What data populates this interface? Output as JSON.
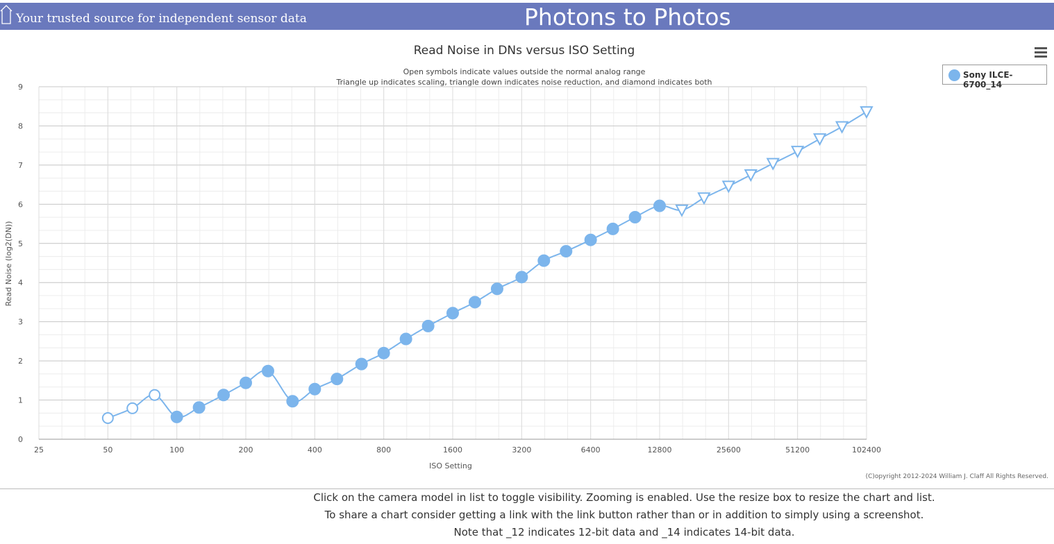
{
  "header": {
    "tagline": "Your trusted source for independent sensor data",
    "site_title": "Photons to Photos",
    "background": "#6a79bd"
  },
  "legend": {
    "label": "Sony ILCE-6700_14",
    "color": "#7cb5ec"
  },
  "copyright": "(C)opyright 2012-2024 William J. Claff All Rights Reserved.",
  "notes": [
    "Click on the camera model in list to toggle visibility. Zooming is enabled. Use the resize box to resize the chart and list.",
    "To share a chart consider getting a link with the link button rather than or in addition to simply using a screenshot.",
    "Note that _12 indicates 12-bit data and _14 indicates 14-bit data."
  ],
  "chart_data": {
    "type": "line",
    "title": "Read Noise in DNs versus ISO Setting",
    "subtitle": [
      "Open symbols indicate values outside the normal analog range",
      "Triangle up indicates scaling, triangle down indicates noise reduction, and diamond indicates both"
    ],
    "xlabel": "ISO Setting",
    "ylabel": "Read Noise (log2(DN))",
    "x_scale": "log2",
    "xlim": [
      25,
      102400
    ],
    "ylim": [
      0,
      9
    ],
    "x_ticks": [
      25,
      50,
      100,
      200,
      400,
      800,
      1600,
      3200,
      6400,
      12800,
      25600,
      51200,
      102400
    ],
    "y_ticks": [
      0,
      1,
      2,
      3,
      4,
      5,
      6,
      7,
      8,
      9
    ],
    "grid": true,
    "legend_position": "top-right",
    "series": [
      {
        "name": "Sony ILCE-6700_14",
        "color": "#7cb5ec",
        "points": [
          {
            "x": 50,
            "y": 0.54,
            "marker": "open-circle"
          },
          {
            "x": 64,
            "y": 0.79,
            "marker": "open-circle"
          },
          {
            "x": 80,
            "y": 1.13,
            "marker": "open-circle"
          },
          {
            "x": 100,
            "y": 0.57,
            "marker": "circle"
          },
          {
            "x": 125,
            "y": 0.81,
            "marker": "circle"
          },
          {
            "x": 160,
            "y": 1.13,
            "marker": "circle"
          },
          {
            "x": 200,
            "y": 1.44,
            "marker": "circle"
          },
          {
            "x": 250,
            "y": 1.74,
            "marker": "circle"
          },
          {
            "x": 320,
            "y": 0.97,
            "marker": "circle"
          },
          {
            "x": 400,
            "y": 1.28,
            "marker": "circle"
          },
          {
            "x": 500,
            "y": 1.54,
            "marker": "circle"
          },
          {
            "x": 640,
            "y": 1.92,
            "marker": "circle"
          },
          {
            "x": 800,
            "y": 2.2,
            "marker": "circle"
          },
          {
            "x": 1000,
            "y": 2.56,
            "marker": "circle"
          },
          {
            "x": 1250,
            "y": 2.89,
            "marker": "circle"
          },
          {
            "x": 1600,
            "y": 3.22,
            "marker": "circle"
          },
          {
            "x": 2000,
            "y": 3.5,
            "marker": "circle"
          },
          {
            "x": 2500,
            "y": 3.84,
            "marker": "circle"
          },
          {
            "x": 3200,
            "y": 4.14,
            "marker": "circle"
          },
          {
            "x": 4000,
            "y": 4.56,
            "marker": "circle"
          },
          {
            "x": 5000,
            "y": 4.8,
            "marker": "circle"
          },
          {
            "x": 6400,
            "y": 5.09,
            "marker": "circle"
          },
          {
            "x": 8000,
            "y": 5.37,
            "marker": "circle"
          },
          {
            "x": 10000,
            "y": 5.67,
            "marker": "circle"
          },
          {
            "x": 12800,
            "y": 5.96,
            "marker": "circle"
          },
          {
            "x": 16000,
            "y": 5.85,
            "marker": "open-triangle-down"
          },
          {
            "x": 20000,
            "y": 6.16,
            "marker": "open-triangle-down"
          },
          {
            "x": 25600,
            "y": 6.46,
            "marker": "open-triangle-down"
          },
          {
            "x": 32000,
            "y": 6.75,
            "marker": "open-triangle-down"
          },
          {
            "x": 40000,
            "y": 7.04,
            "marker": "open-triangle-down"
          },
          {
            "x": 51200,
            "y": 7.35,
            "marker": "open-triangle-down"
          },
          {
            "x": 64000,
            "y": 7.67,
            "marker": "open-triangle-down"
          },
          {
            "x": 80000,
            "y": 7.98,
            "marker": "open-triangle-down"
          },
          {
            "x": 102400,
            "y": 8.36,
            "marker": "open-triangle-down"
          }
        ]
      }
    ]
  }
}
